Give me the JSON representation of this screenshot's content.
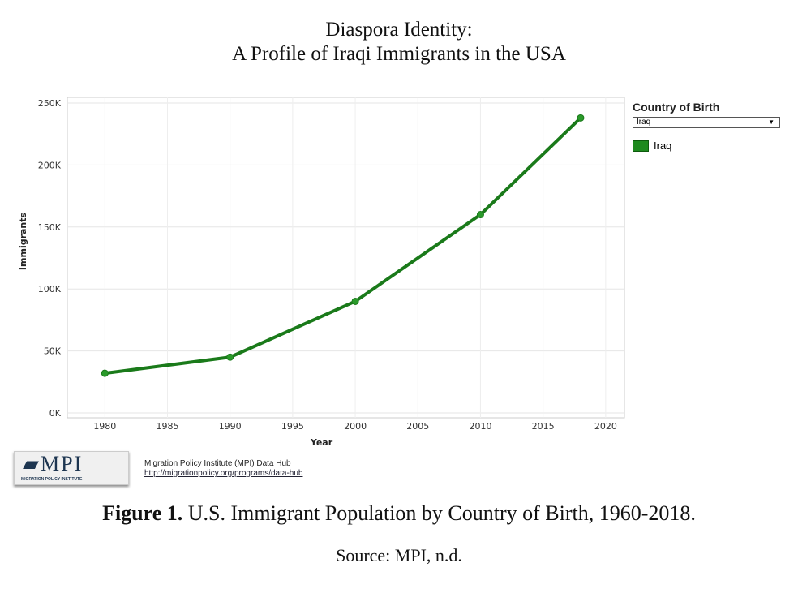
{
  "title_line1": "Diaspora Identity:",
  "title_line2": "A Profile of Iraqi Immigrants in the USA",
  "chart_data": {
    "type": "line",
    "xlabel": "Year",
    "ylabel": "Immigrants",
    "x": [
      1980,
      1990,
      2000,
      2010,
      2018
    ],
    "series": [
      {
        "name": "Iraq",
        "values": [
          32000,
          45000,
          90000,
          160000,
          238000
        ],
        "color": "#1a7a1a"
      }
    ],
    "xlim": [
      1977,
      2021.5
    ],
    "ylim": [
      0,
      250000
    ],
    "xticks": [
      1980,
      1985,
      1990,
      1995,
      2000,
      2005,
      2010,
      2015,
      2020
    ],
    "yticks": [
      0,
      50000,
      100000,
      150000,
      200000,
      250000
    ],
    "ytick_labels": [
      "0K",
      "50K",
      "100K",
      "150K",
      "200K",
      "250K"
    ],
    "grid": true,
    "legend": "right"
  },
  "legend": {
    "title": "Country of Birth",
    "selected": "Iraq",
    "item": "Iraq"
  },
  "source": {
    "logo_text": "MPI",
    "logo_sub": "MIGRATION POLICY INSTITUTE",
    "name": "Migration Policy Institute (MPI) Data Hub",
    "url": "http://migrationpolicy.org/programs/data-hub"
  },
  "caption": {
    "label": "Figure 1.",
    "text": " U.S. Immigrant Population by Country of Birth, 1960-2018."
  },
  "source_line": "Source: MPI, n.d."
}
